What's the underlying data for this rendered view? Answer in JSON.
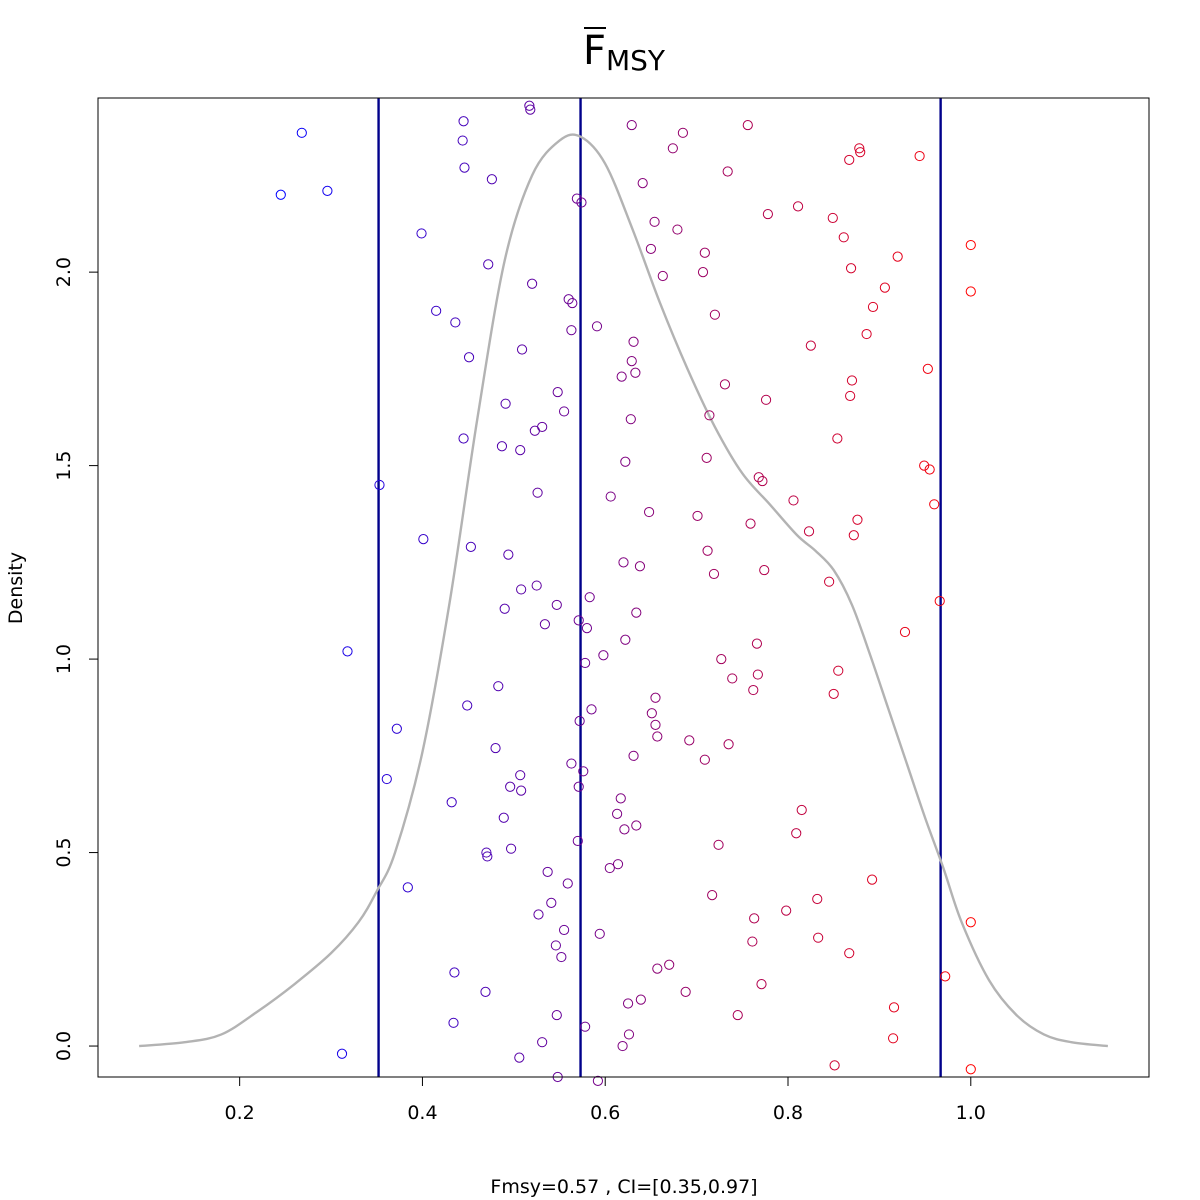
{
  "chart_data": {
    "type": "scatter",
    "title": {
      "symbol": "F",
      "subscript": "MSY"
    },
    "xlabel": "Fmsy=0.57 , CI=[0.35,0.97]",
    "ylabel": "Density",
    "xlim": [
      0.045,
      1.195
    ],
    "ylim": [
      -0.08,
      2.45
    ],
    "x_ticks": [
      {
        "value": 0.2,
        "label": "0.2"
      },
      {
        "value": 0.4,
        "label": "0.4"
      },
      {
        "value": 0.6,
        "label": "0.6"
      },
      {
        "value": 0.8,
        "label": "0.8"
      },
      {
        "value": 1.0,
        "label": "1.0"
      }
    ],
    "y_ticks": [
      {
        "value": 0.0,
        "label": "0.0"
      },
      {
        "value": 0.5,
        "label": "0.5"
      },
      {
        "value": 1.0,
        "label": "1.0"
      },
      {
        "value": 1.5,
        "label": "1.5"
      },
      {
        "value": 2.0,
        "label": "2.0"
      }
    ],
    "vlines": {
      "color": "#00008b",
      "values": [
        0.352,
        0.573,
        0.967
      ]
    },
    "density_curve": {
      "color": "#b3b3b3",
      "x": [
        0.09,
        0.14,
        0.18,
        0.22,
        0.26,
        0.3,
        0.33,
        0.35,
        0.37,
        0.4,
        0.43,
        0.46,
        0.49,
        0.52,
        0.55,
        0.573,
        0.6,
        0.63,
        0.66,
        0.69,
        0.72,
        0.75,
        0.78,
        0.81,
        0.83,
        0.85,
        0.87,
        0.89,
        0.91,
        0.93,
        0.95,
        0.97,
        0.99,
        1.02,
        1.05,
        1.08,
        1.11,
        1.15
      ],
      "y": [
        0.0,
        0.01,
        0.03,
        0.09,
        0.16,
        0.24,
        0.32,
        0.4,
        0.5,
        0.76,
        1.15,
        1.62,
        2.03,
        2.25,
        2.34,
        2.35,
        2.28,
        2.11,
        1.92,
        1.75,
        1.6,
        1.48,
        1.4,
        1.32,
        1.28,
        1.23,
        1.14,
        1.01,
        0.87,
        0.73,
        0.59,
        0.46,
        0.32,
        0.17,
        0.08,
        0.03,
        0.01,
        0.0
      ]
    },
    "points": {
      "color_low": "#0000ff",
      "color_high": "#ff0000",
      "x": [
        0.245,
        0.268,
        0.296,
        0.312,
        0.318,
        0.353,
        0.361,
        0.372,
        0.384,
        0.399,
        0.401,
        0.415,
        0.432,
        0.434,
        0.435,
        0.436,
        0.444,
        0.445,
        0.445,
        0.446,
        0.449,
        0.451,
        0.453,
        0.469,
        0.47,
        0.471,
        0.472,
        0.476,
        0.48,
        0.483,
        0.487,
        0.489,
        0.49,
        0.491,
        0.494,
        0.496,
        0.497,
        0.506,
        0.507,
        0.507,
        0.508,
        0.508,
        0.509,
        0.517,
        0.518,
        0.52,
        0.523,
        0.525,
        0.526,
        0.527,
        0.531,
        0.531,
        0.534,
        0.537,
        0.541,
        0.546,
        0.547,
        0.547,
        0.548,
        0.548,
        0.552,
        0.555,
        0.555,
        0.559,
        0.56,
        0.563,
        0.563,
        0.564,
        0.569,
        0.57,
        0.571,
        0.571,
        0.572,
        0.574,
        0.576,
        0.578,
        0.578,
        0.58,
        0.583,
        0.585,
        0.591,
        0.592,
        0.594,
        0.598,
        0.605,
        0.606,
        0.613,
        0.614,
        0.617,
        0.618,
        0.619,
        0.62,
        0.621,
        0.622,
        0.622,
        0.625,
        0.626,
        0.628,
        0.629,
        0.629,
        0.631,
        0.631,
        0.633,
        0.634,
        0.634,
        0.638,
        0.639,
        0.641,
        0.648,
        0.65,
        0.651,
        0.654,
        0.655,
        0.655,
        0.657,
        0.657,
        0.663,
        0.67,
        0.674,
        0.679,
        0.685,
        0.688,
        0.692,
        0.701,
        0.707,
        0.709,
        0.709,
        0.711,
        0.712,
        0.714,
        0.717,
        0.719,
        0.72,
        0.724,
        0.727,
        0.731,
        0.734,
        0.735,
        0.739,
        0.745,
        0.756,
        0.759,
        0.761,
        0.762,
        0.763,
        0.766,
        0.767,
        0.768,
        0.771,
        0.772,
        0.774,
        0.776,
        0.778,
        0.798,
        0.806,
        0.809,
        0.811,
        0.815,
        0.823,
        0.825,
        0.832,
        0.833,
        0.845,
        0.849,
        0.85,
        0.851,
        0.854,
        0.855,
        0.861,
        0.867,
        0.867,
        0.868,
        0.869,
        0.87,
        0.872,
        0.876,
        0.878,
        0.879,
        0.886,
        0.892,
        0.893,
        0.906,
        0.915,
        0.916,
        0.92,
        0.928,
        0.944,
        0.949,
        0.953,
        0.955,
        0.96,
        0.966,
        0.972,
        1.0,
        1.0,
        1.0,
        1.0
      ],
      "y": [
        2.2,
        2.36,
        2.21,
        -0.02,
        1.02,
        1.45,
        0.69,
        0.82,
        0.41,
        2.1,
        1.31,
        1.9,
        0.63,
        0.06,
        0.19,
        1.87,
        2.34,
        2.39,
        1.57,
        2.27,
        0.88,
        1.78,
        1.29,
        0.14,
        0.5,
        0.49,
        2.02,
        2.24,
        0.77,
        0.93,
        1.55,
        0.59,
        1.13,
        1.66,
        1.27,
        0.67,
        0.51,
        -0.03,
        1.54,
        0.7,
        0.66,
        1.18,
        1.8,
        2.43,
        2.42,
        1.97,
        1.59,
        1.19,
        1.43,
        0.34,
        1.6,
        0.01,
        1.09,
        0.45,
        0.37,
        0.26,
        0.08,
        1.14,
        1.69,
        -0.08,
        0.23,
        1.64,
        0.3,
        0.42,
        1.93,
        0.73,
        1.85,
        1.92,
        2.19,
        0.53,
        1.1,
        0.67,
        0.84,
        2.18,
        0.71,
        0.05,
        0.99,
        1.08,
        1.16,
        0.87,
        1.86,
        -0.09,
        0.29,
        1.01,
        0.46,
        1.42,
        0.6,
        0.47,
        0.64,
        1.73,
        0.0,
        1.25,
        0.56,
        1.05,
        1.51,
        0.11,
        0.03,
        1.62,
        1.77,
        2.38,
        1.82,
        0.75,
        1.74,
        1.12,
        0.57,
        1.24,
        0.12,
        2.23,
        1.38,
        2.06,
        0.86,
        2.13,
        0.83,
        0.9,
        0.8,
        0.2,
        1.99,
        0.21,
        2.32,
        2.11,
        2.36,
        0.14,
        0.79,
        1.37,
        2.0,
        0.74,
        2.05,
        1.52,
        1.28,
        1.63,
        0.39,
        1.22,
        1.89,
        0.52,
        1.0,
        1.71,
        2.26,
        0.78,
        0.95,
        0.08,
        2.38,
        1.35,
        0.27,
        0.92,
        0.33,
        1.04,
        0.96,
        1.47,
        0.16,
        1.46,
        1.23,
        1.67,
        2.15,
        0.35,
        1.41,
        0.55,
        2.17,
        0.61,
        1.33,
        1.81,
        0.38,
        0.28,
        1.2,
        2.14,
        0.91,
        -0.05,
        1.57,
        0.97,
        2.09,
        2.29,
        0.24,
        1.68,
        2.01,
        1.72,
        1.32,
        1.36,
        2.32,
        2.31,
        1.84,
        0.43,
        1.91,
        1.96,
        0.02,
        0.1,
        2.04,
        1.07,
        2.3,
        1.5,
        1.75,
        1.49,
        1.4,
        1.15,
        0.18,
        2.07,
        1.95,
        0.32,
        -0.06
      ]
    }
  }
}
